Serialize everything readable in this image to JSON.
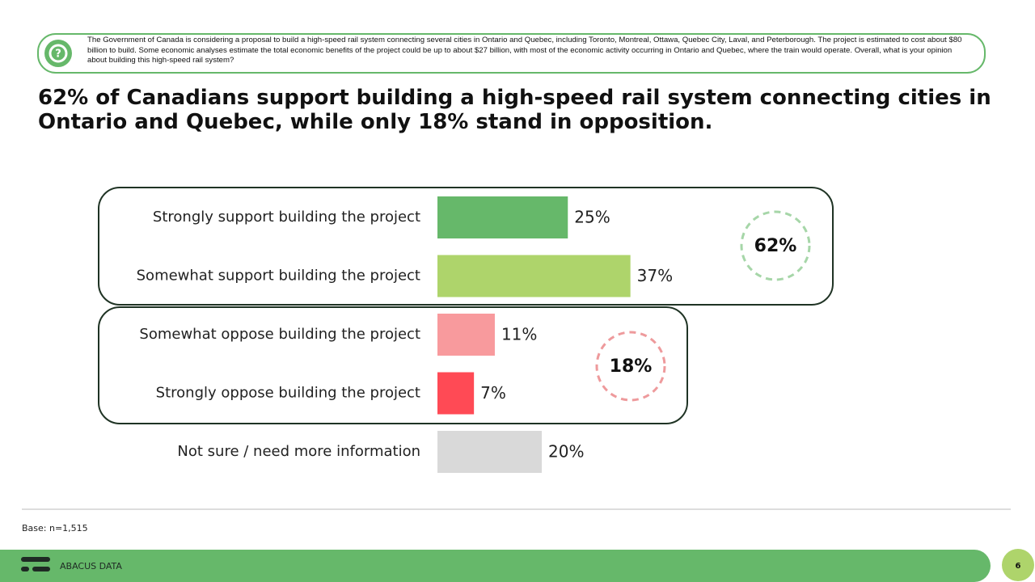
{
  "question": "The Government of Canada is considering a proposal to build a high-speed rail system connecting several cities in Ontario and Quebec, including Toronto, Montreal, Ottawa, Quebec City, Laval, and Peterborough. The project is estimated to cost about $80 billion to build. Some economic analyses estimate the total economic benefits of the project could be up to about $27 billion, with most of the economic activity occurring in Ontario and Quebec, where the train would operate. Overall, what is your opinion about building this high-speed rail system?",
  "chart_data": {
    "type": "hbar",
    "title": "62% of Canadians support building a high-speed rail system connecting cities in Ontario and Quebec, while only 18% stand in opposition.",
    "categories": [
      "Strongly support building the project",
      "Somewhat support building the project",
      "Somewhat oppose building the project",
      "Strongly oppose building the project",
      "Not sure / need more information"
    ],
    "values": [
      25,
      37,
      11,
      7,
      20
    ],
    "value_labels": [
      "25%",
      "37%",
      "11%",
      "7%",
      "20%"
    ],
    "colors": [
      "#66b86a",
      "#aed46b",
      "#f89a9d",
      "#ff4a55",
      "#d9d9d9"
    ],
    "group_labels": [
      "62%",
      "18%"
    ]
  },
  "footer": {
    "base": "Base: n=1,515",
    "brand": "ABACUS DATA",
    "page": "6"
  }
}
